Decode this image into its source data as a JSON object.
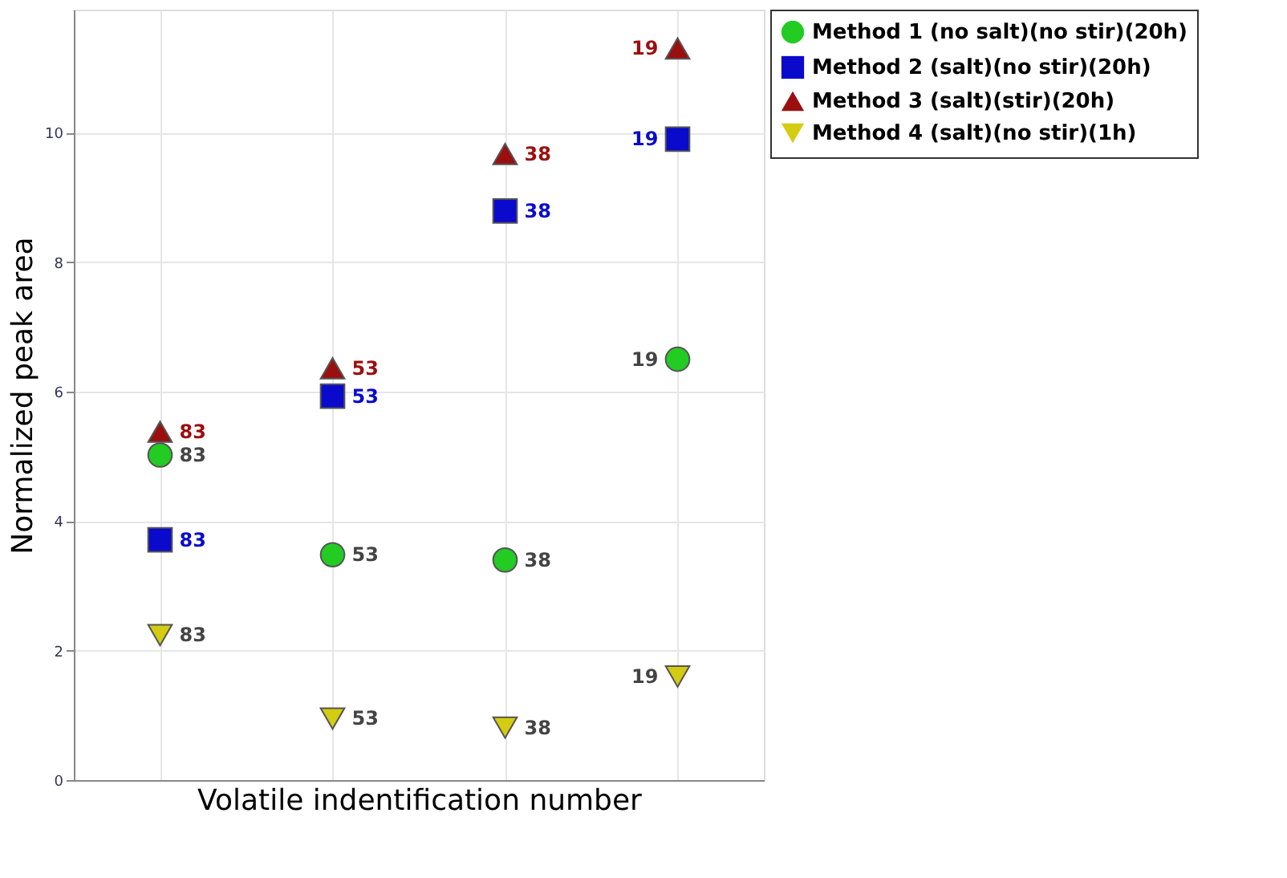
{
  "chart_data": {
    "type": "scatter",
    "xlabel": "Volatile indentification number",
    "ylabel": "Normalized peak area",
    "categories": [
      null,
      null,
      null,
      null
    ],
    "series": [
      {
        "name": "Method 1 (no salt)(no stir)(20h)",
        "color": "#22cc22",
        "marker": "circle",
        "values": [
          5.02,
          3.48,
          3.4,
          6.5
        ]
      },
      {
        "name": "Method 2 (salt)(no stir)(20h)",
        "color": "#0a0acc",
        "marker": "square",
        "values": [
          3.71,
          5.93,
          8.79,
          9.9
        ]
      },
      {
        "name": "Method 3 (salt)(stir)(20h)",
        "color": "#9b0f0f",
        "marker": "triangle",
        "values": [
          5.38,
          6.36,
          9.67,
          11.3
        ]
      },
      {
        "name": "Method 4 (salt)(no stir)(1h)",
        "color": "#d4cc10",
        "marker": "triangle-down",
        "values": [
          2.24,
          0.95,
          0.81,
          1.6
        ]
      }
    ],
    "annotations": [
      "83",
      "53",
      "38",
      "19",
      "83",
      "53",
      "38",
      "19",
      "83",
      "53",
      "38",
      "19",
      "83",
      "53",
      "38",
      "19"
    ],
    "ylim": [
      0,
      11.9
    ],
    "yticks": [
      0,
      2,
      4,
      6,
      8,
      10
    ],
    "grid": true,
    "legend": "right",
    "tick_labels": "y"
  }
}
